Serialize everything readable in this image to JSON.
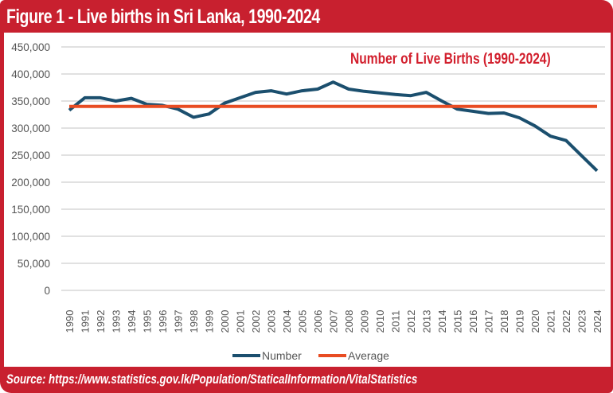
{
  "figure": {
    "title": "Figure 1 - Live births in Sri Lanka, 1990-2024",
    "source": "Source: https://www.statistics.gov.lk/Population/StaticalInformation/VitalStatistics",
    "frame_color": "#c8202f"
  },
  "chart_data": {
    "type": "line",
    "title": "Figure 1 - Live births in Sri Lanka, 1990-2024",
    "annotation": "Number of Live Births (1990-2024)",
    "xlabel": "",
    "ylabel": "",
    "ylim": [
      0,
      450000
    ],
    "yticks": [
      0,
      50000,
      100000,
      150000,
      200000,
      250000,
      300000,
      350000,
      400000,
      450000
    ],
    "ytick_labels": [
      "0",
      "50,000",
      "100,000",
      "150,000",
      "200,000",
      "250,000",
      "300,000",
      "350,000",
      "400,000",
      "450,000"
    ],
    "grid": true,
    "legend_position": "bottom",
    "x": [
      "1990",
      "1991",
      "1992",
      "1993",
      "1994",
      "1995",
      "1996",
      "1997",
      "1998",
      "1999",
      "2000",
      "2001",
      "2002",
      "2003",
      "2004",
      "2005",
      "2006",
      "2007",
      "2008",
      "2009",
      "2010",
      "2011",
      "2012",
      "2013",
      "2014",
      "2015",
      "2016",
      "2017",
      "2018",
      "2019",
      "2020",
      "2021",
      "2022",
      "2023",
      "2024"
    ],
    "series": [
      {
        "name": "Number",
        "color": "#1b4f6e",
        "values": [
          333000,
          356000,
          356000,
          350000,
          355000,
          344000,
          342000,
          335000,
          320000,
          326000,
          346000,
          356000,
          366000,
          369000,
          363000,
          369000,
          372000,
          385000,
          372000,
          368000,
          365000,
          362000,
          360000,
          366000,
          350000,
          335000,
          331000,
          327000,
          328000,
          319000,
          304000,
          285000,
          277000,
          249000,
          221000
        ]
      },
      {
        "name": "Average",
        "color": "#e84c22",
        "values": [
          340000,
          340000,
          340000,
          340000,
          340000,
          340000,
          340000,
          340000,
          340000,
          340000,
          340000,
          340000,
          340000,
          340000,
          340000,
          340000,
          340000,
          340000,
          340000,
          340000,
          340000,
          340000,
          340000,
          340000,
          340000,
          340000,
          340000,
          340000,
          340000,
          340000,
          340000,
          340000,
          340000,
          340000,
          340000
        ]
      }
    ]
  }
}
